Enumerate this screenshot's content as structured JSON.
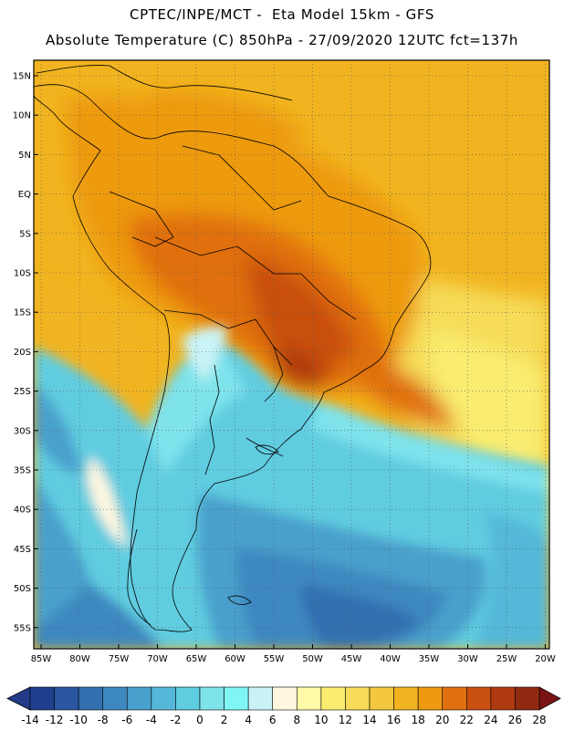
{
  "header": {
    "line1": "CPTEC/INPE/MCT -  Eta Model 15km - GFS",
    "line2": "Absolute Temperature (C) 850hPa - 27/09/2020 12UTC fct=137h"
  },
  "map": {
    "lat_labels": [
      "15N",
      "10N",
      "5N",
      "EQ",
      "5S",
      "10S",
      "15S",
      "20S",
      "25S",
      "30S",
      "35S",
      "40S",
      "45S",
      "50S",
      "55S"
    ],
    "lon_labels": [
      "85W",
      "80W",
      "75W",
      "70W",
      "65W",
      "60W",
      "55W",
      "50W",
      "45W",
      "40W",
      "35W",
      "30W",
      "25W",
      "20W"
    ],
    "grid": "dotted"
  },
  "colorbar": {
    "labels": [
      "-14",
      "-12",
      "-10",
      "-8",
      "-6",
      "-4",
      "-2",
      "0",
      "2",
      "4",
      "6",
      "8",
      "10",
      "12",
      "14",
      "16",
      "18",
      "20",
      "22",
      "24",
      "26",
      "28"
    ],
    "colors": [
      "#1f3f8f",
      "#2a57a0",
      "#3370b0",
      "#3e88c0",
      "#48a0cc",
      "#55b8d8",
      "#60cce0",
      "#7fe3ec",
      "#7ff5f5",
      "#c9f3f7",
      "#fff7e0",
      "#fffaa8",
      "#f9ec70",
      "#f6dc58",
      "#f3c83e",
      "#f1b420",
      "#ed9a10",
      "#e07010",
      "#c95010",
      "#b03a10",
      "#8f2a10"
    ],
    "low_extend_color": "#223a88",
    "high_extend_color": "#7a1414"
  }
}
